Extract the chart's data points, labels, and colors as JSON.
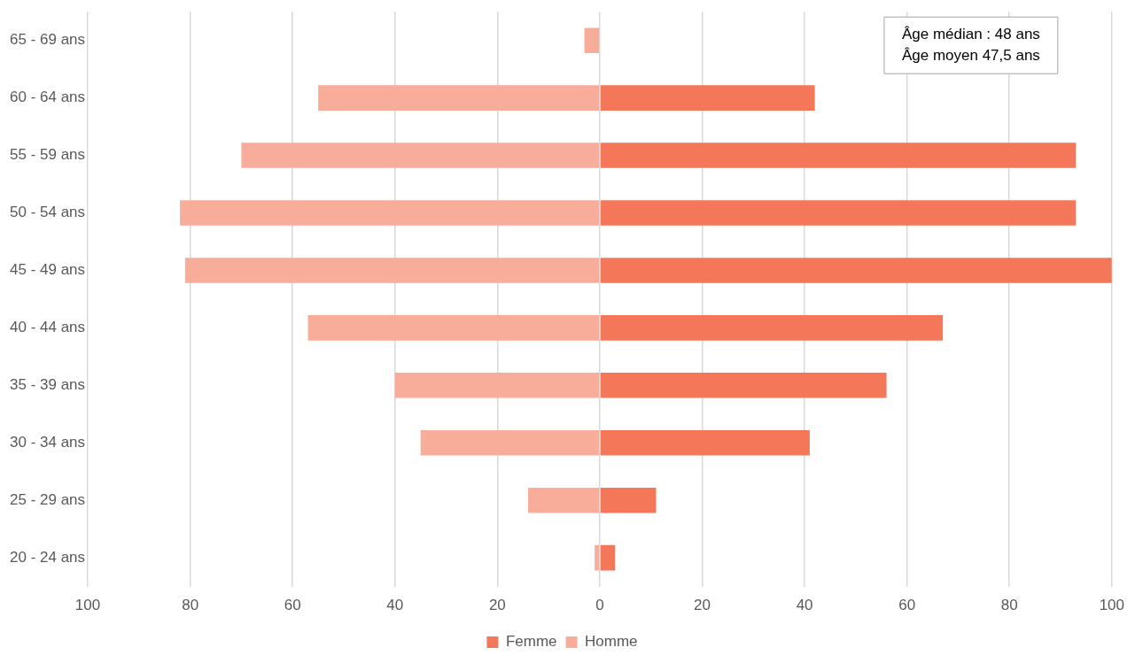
{
  "chart_data": {
    "type": "bar",
    "orientation": "horizontal",
    "stacked": true,
    "categories": [
      "65 - 69 ans",
      "60 - 64 ans",
      "55 - 59 ans",
      "50 - 54 ans",
      "45 - 49 ans",
      "40 - 44 ans",
      "35 - 39 ans",
      "30 - 34 ans",
      "25 - 29 ans",
      "20 - 24 ans"
    ],
    "series": [
      {
        "name": "Femme",
        "color": "#f4775a",
        "values": [
          null,
          42,
          93,
          93,
          100,
          67,
          56,
          41,
          11,
          3
        ]
      },
      {
        "name": "Homme",
        "color": "#f8ad9a",
        "values": [
          -3,
          -55,
          -70,
          -82,
          -81,
          -57,
          -40,
          -35,
          -14,
          -1
        ]
      }
    ],
    "xlim": [
      -100,
      100
    ],
    "xticks": [
      {
        "value": -100,
        "label": "100"
      },
      {
        "value": -80,
        "label": "80"
      },
      {
        "value": -60,
        "label": "60"
      },
      {
        "value": -40,
        "label": "40"
      },
      {
        "value": -20,
        "label": "20"
      },
      0,
      20,
      40,
      60,
      80,
      100
    ],
    "grid": "x",
    "legend": "bottom",
    "annotations": [
      "Âge médian : 48 ans\nÂge moyen 47,5 ans"
    ]
  }
}
